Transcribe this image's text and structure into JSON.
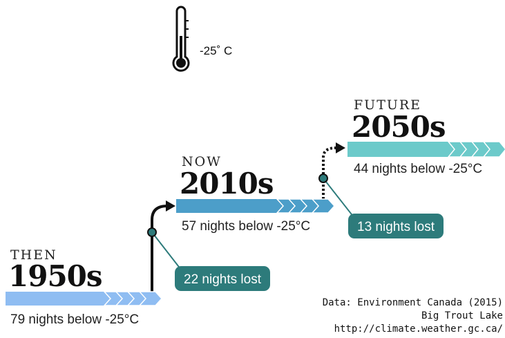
{
  "thermometer_label": "-25˚ C",
  "periods": [
    {
      "era": "THEN",
      "decade": "1950s",
      "nights": "79 nights below -25°C"
    },
    {
      "era": "NOW",
      "decade": "2010s",
      "nights": "57 nights below -25°C"
    },
    {
      "era": "FUTURE",
      "decade": "2050s",
      "nights": "44 nights below -25°C"
    }
  ],
  "changes": [
    "22 nights lost",
    "13 nights lost"
  ],
  "source": [
    "Data: Environment Canada (2015)",
    "Big Trout Lake",
    "http://climate.weather.gc.ca/"
  ]
}
